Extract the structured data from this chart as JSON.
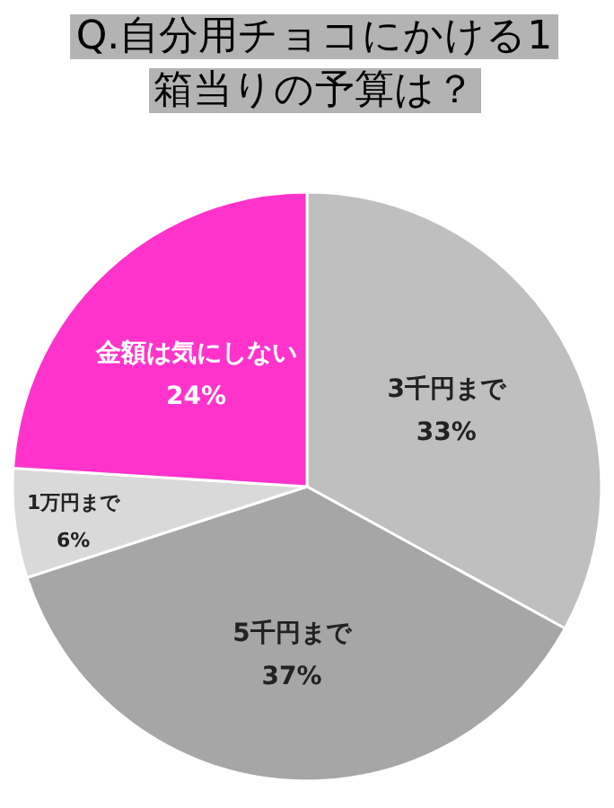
{
  "chart_data": {
    "type": "pie",
    "title": "Q.自分用チョコにかける1箱当りの予算は？",
    "categories": [
      "3千円まで",
      "5千円まで",
      "1万円まで",
      "金額は気にしない"
    ],
    "values": [
      33,
      37,
      6,
      24
    ],
    "value_labels": [
      "33%",
      "37%",
      "6%",
      "24%"
    ],
    "colors": [
      "#bfbfbf",
      "#a6a6a6",
      "#d9d9d9",
      "#ff33cc"
    ]
  }
}
